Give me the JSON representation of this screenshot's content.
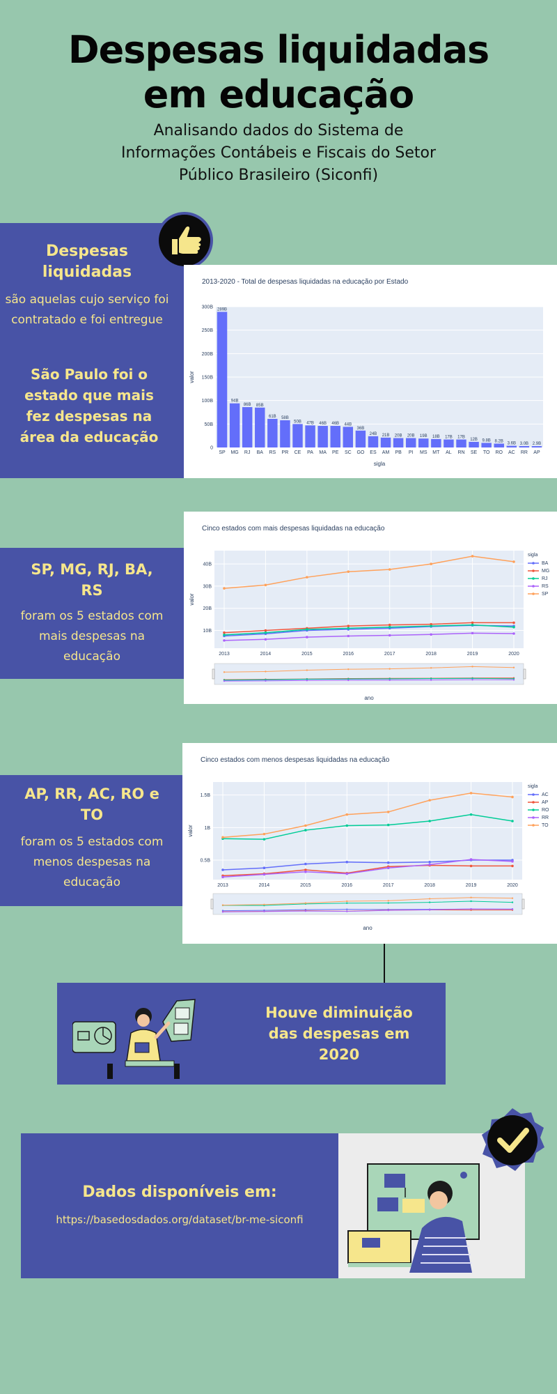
{
  "header": {
    "title_line1": "Despesas liquidadas",
    "title_line2": "em educação",
    "subtitle_line1": "Analisando dados do Sistema de",
    "subtitle_line2": "Informações Contábeis e Fiscais do Setor",
    "subtitle_line3": "Público Brasileiro (Siconfi)"
  },
  "section1": {
    "heading_line1": "Despesas",
    "heading_line2": "liquidadas",
    "text_line1": "são aquelas cujo serviço foi",
    "text_line2": "contratado e foi entregue",
    "highlight_line1": "São Paulo foi o",
    "highlight_line2": "estado que mais",
    "highlight_line3": "fez despesas na",
    "highlight_line4": "área da educação"
  },
  "section2": {
    "heading_line1": "SP, MG, RJ, BA,",
    "heading_line2": "RS",
    "text_line1": "foram os 5 estados com",
    "text_line2": "mais despesas na",
    "text_line3": "educação"
  },
  "section3": {
    "heading_line1": "AP, RR, AC, RO e",
    "heading_line2": "TO",
    "text_line1": "foram os 5 estados com",
    "text_line2": "menos despesas na",
    "text_line3": "educação"
  },
  "section4": {
    "text_line1": "Houve diminuição",
    "text_line2": "das despesas em",
    "text_line3": "2020"
  },
  "section5": {
    "heading": "Dados disponíveis em:",
    "url": "https://basedosdados.org/dataset/br-me-siconfi"
  },
  "colors": {
    "background": "#97c7ad",
    "box_blue": "#4853a6",
    "text_yellow": "#f6e68c",
    "bar": "#636efa"
  },
  "chart_data": [
    {
      "type": "bar",
      "title": "2013-2020 - Total de despesas liquidadas na educação por Estado",
      "xlabel": "sigla",
      "ylabel": "valor",
      "ylim": [
        0,
        300
      ],
      "yticks": [
        "0",
        "50B",
        "100B",
        "150B",
        "200B",
        "250B",
        "300B"
      ],
      "categories": [
        "SP",
        "MG",
        "RJ",
        "BA",
        "RS",
        "PR",
        "CE",
        "PA",
        "MA",
        "PE",
        "SC",
        "GO",
        "ES",
        "AM",
        "PB",
        "PI",
        "MS",
        "MT",
        "AL",
        "RN",
        "SE",
        "TO",
        "RO",
        "AC",
        "RR",
        "AP"
      ],
      "values": [
        289,
        94,
        86,
        85,
        61,
        58,
        50,
        47,
        46,
        46,
        44,
        36,
        24,
        21,
        20,
        20,
        19,
        18,
        17,
        17,
        12,
        9.8,
        8.2,
        3.6,
        3.0,
        2.9
      ],
      "value_labels": [
        "289B",
        "94B",
        "86B",
        "85B",
        "61B",
        "58B",
        "50B",
        "47B",
        "46B",
        "46B",
        "44B",
        "36B",
        "24B",
        "21B",
        "20B",
        "20B",
        "19B",
        "18B",
        "17B",
        "17B",
        "12B",
        "9.8B",
        "8.2B",
        "3.6B",
        "3.0B",
        "2.9B"
      ]
    },
    {
      "type": "line",
      "title": "Cinco estados com mais despesas liquidadas na educação",
      "xlabel": "ano",
      "ylabel": "valor",
      "legend_title": "sigla",
      "x": [
        2013,
        2014,
        2015,
        2016,
        2017,
        2018,
        2019,
        2020
      ],
      "ylim": [
        2,
        46
      ],
      "yticks": [
        "10B",
        "20B",
        "30B",
        "40B"
      ],
      "series": [
        {
          "name": "BA",
          "color": "#636efa",
          "values": [
            7.5,
            8.5,
            10,
            10.5,
            11,
            11.8,
            12.3,
            12
          ]
        },
        {
          "name": "MG",
          "color": "#ef553b",
          "values": [
            9,
            10,
            11,
            12,
            12.5,
            12.8,
            13.5,
            13.5
          ]
        },
        {
          "name": "RJ",
          "color": "#00cc96",
          "values": [
            8,
            9,
            10.5,
            11,
            11.5,
            12,
            12.5,
            11.5
          ]
        },
        {
          "name": "RS",
          "color": "#ab63fa",
          "values": [
            5.5,
            6,
            7,
            7.5,
            7.8,
            8.2,
            8.8,
            8.6
          ]
        },
        {
          "name": "SP",
          "color": "#ffa15a",
          "values": [
            29,
            30.5,
            34,
            36.5,
            37.5,
            40,
            43.5,
            41
          ]
        }
      ]
    },
    {
      "type": "line",
      "title": "Cinco estados com menos despesas liquidadas na educação",
      "xlabel": "ano",
      "ylabel": "valor",
      "legend_title": "sigla",
      "x": [
        2013,
        2014,
        2015,
        2016,
        2017,
        2018,
        2019,
        2020
      ],
      "ylim": [
        0.2,
        1.7
      ],
      "yticks": [
        "0.5B",
        "1B",
        "1.5B"
      ],
      "series": [
        {
          "name": "AC",
          "color": "#636efa",
          "values": [
            0.35,
            0.38,
            0.44,
            0.47,
            0.46,
            0.47,
            0.5,
            0.5
          ]
        },
        {
          "name": "AP",
          "color": "#ef553b",
          "values": [
            0.26,
            0.29,
            0.35,
            0.3,
            0.4,
            0.42,
            0.41,
            0.41
          ]
        },
        {
          "name": "RO",
          "color": "#00cc96",
          "values": [
            0.83,
            0.82,
            0.96,
            1.03,
            1.04,
            1.1,
            1.2,
            1.1
          ]
        },
        {
          "name": "RR",
          "color": "#ab63fa",
          "values": [
            0.24,
            0.28,
            0.32,
            0.29,
            0.38,
            0.43,
            0.51,
            0.48
          ]
        },
        {
          "name": "TO",
          "color": "#ffa15a",
          "values": [
            0.85,
            0.9,
            1.03,
            1.2,
            1.24,
            1.42,
            1.53,
            1.47
          ]
        }
      ]
    }
  ]
}
